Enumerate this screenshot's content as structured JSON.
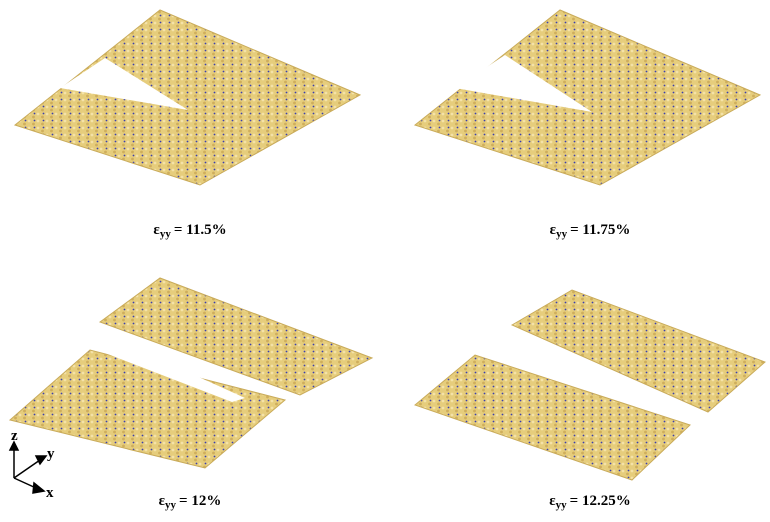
{
  "panels": [
    {
      "symbol": "ε",
      "subscript": "yy",
      "label": "= 11.5%"
    },
    {
      "symbol": "ε",
      "subscript": "yy",
      "label": "= 11.75%"
    },
    {
      "symbol": "ε",
      "subscript": "yy",
      "label": "= 12%"
    },
    {
      "symbol": "ε",
      "subscript": "yy",
      "label": "= 12.25%"
    }
  ],
  "axes": {
    "z": "z",
    "y": "y",
    "x": "x"
  }
}
